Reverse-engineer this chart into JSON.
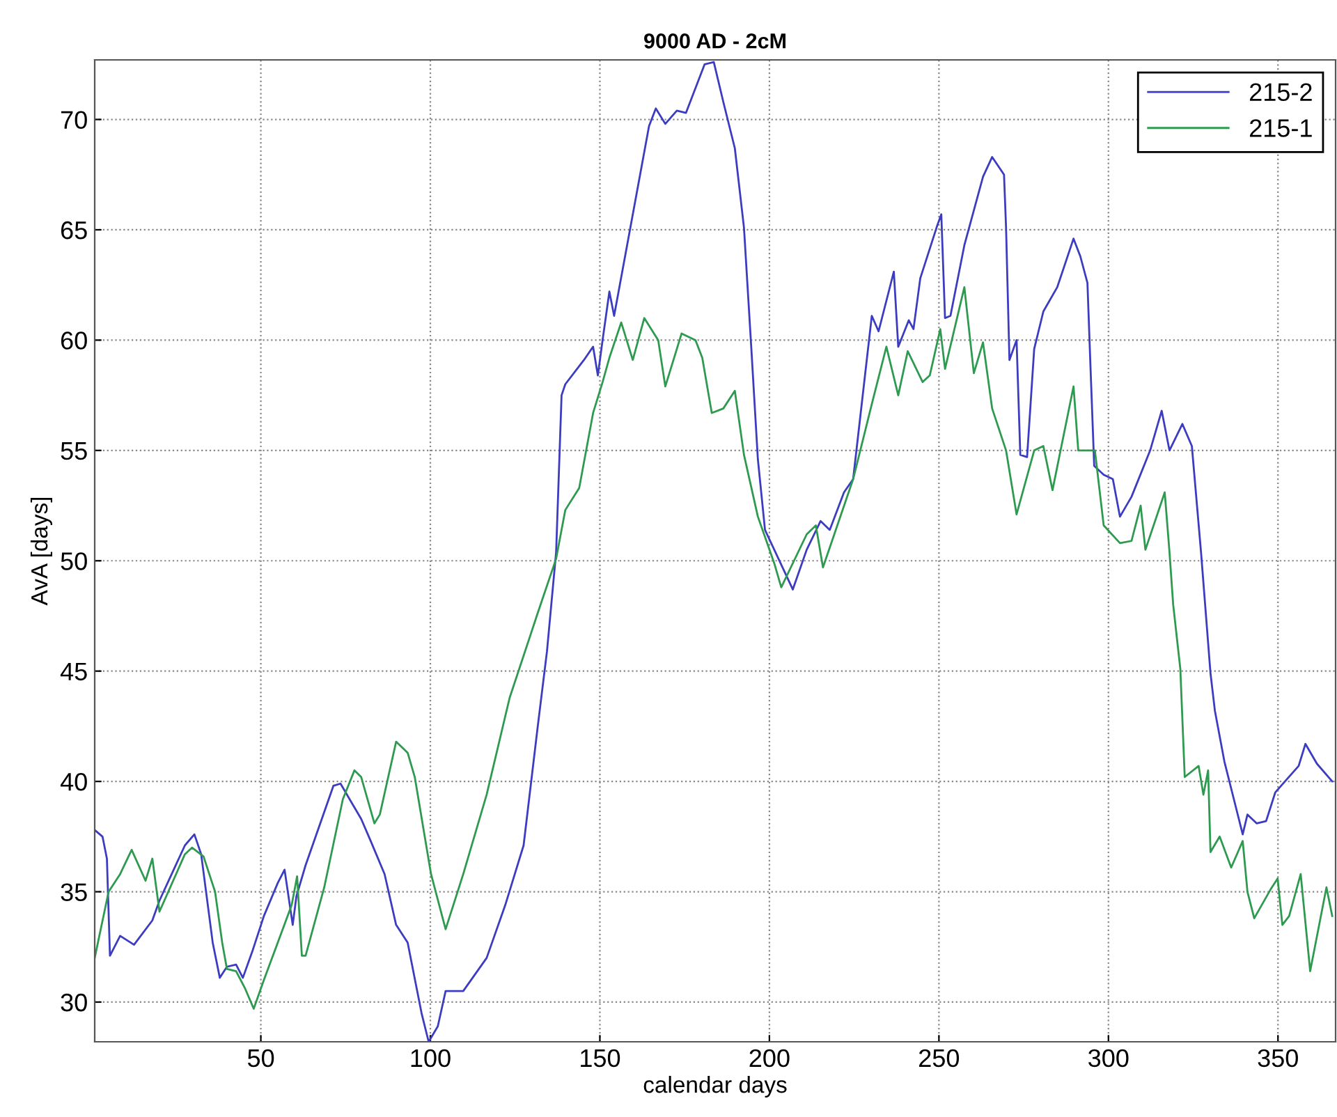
{
  "chart_data": {
    "type": "line",
    "title": "9000 AD - 2cM",
    "xlabel": "calendar days",
    "ylabel": "AvA [days]",
    "xlim": [
      1,
      367
    ],
    "ylim": [
      28.2,
      72.7
    ],
    "xticks": [
      50,
      100,
      150,
      200,
      250,
      300,
      350
    ],
    "yticks": [
      30,
      35,
      40,
      45,
      50,
      55,
      60,
      65,
      70
    ],
    "grid": true,
    "legend": "top right",
    "line_style": "solid",
    "marker": "none",
    "series": [
      {
        "name": "215-2",
        "color": "#3c3cc0",
        "x": [
          1,
          3.3,
          4.6,
          5.5,
          8.5,
          12.6,
          18,
          20.1,
          27.6,
          30.4,
          32.4,
          35.8,
          37.9,
          40,
          42.7,
          44.7,
          47.5,
          50.9,
          55,
          57,
          59.4,
          60.5,
          63.2,
          71.4,
          73.5,
          79.6,
          82.4,
          86.5,
          89.9,
          93.3,
          97.4,
          99.5,
          102.2,
          104.5,
          109.7,
          116.6,
          122.1,
          127.5,
          131.6,
          134.4,
          137.1,
          138.7,
          139.8,
          145.3,
          148,
          149.4,
          150.8,
          152.8,
          154.2,
          164.5,
          166.5,
          169.3,
          172.7,
          175.4,
          180.9,
          183.6,
          186.4,
          189.8,
          192.5,
          194.6,
          196.6,
          198.7,
          206.9,
          211,
          215.1,
          217.8,
          222,
          224.7,
          230.2,
          232.2,
          236.7,
          238,
          241.1,
          242.5,
          244.5,
          249.3,
          250.7,
          251.8,
          253.4,
          257.5,
          263,
          265.7,
          269.2,
          269.8,
          270.8,
          272.9,
          274,
          276,
          278.1,
          280.8,
          284.9,
          289.7,
          291.7,
          293.8,
          294.7,
          295.8,
          298.6,
          301.3,
          303.4,
          306.8,
          312.3,
          315.7,
          318,
          321.8,
          324.6,
          327.3,
          330.1,
          331.4,
          334.2,
          339.6,
          341,
          343.7,
          346.5,
          349.2,
          356.1,
          358.1,
          361.5,
          366
        ],
        "values": [
          37.8,
          37.5,
          36.5,
          32.1,
          33.0,
          32.6,
          33.7,
          34.6,
          37.1,
          37.6,
          36.7,
          32.7,
          31.1,
          31.6,
          31.7,
          31.1,
          32.3,
          33.9,
          35.4,
          36.0,
          33.5,
          34.8,
          36.2,
          39.8,
          39.9,
          38.3,
          37.3,
          35.8,
          33.5,
          32.7,
          29.5,
          28.2,
          28.9,
          30.5,
          30.5,
          32.0,
          34.4,
          37.1,
          42.4,
          45.9,
          50.4,
          57.5,
          58.0,
          59.1,
          59.7,
          58.4,
          60.0,
          62.2,
          61.1,
          69.7,
          70.5,
          69.8,
          70.4,
          70.3,
          72.5,
          72.6,
          70.8,
          68.7,
          65.1,
          59.8,
          54.6,
          51.4,
          48.7,
          50.5,
          51.8,
          51.4,
          53.1,
          53.7,
          61.1,
          60.4,
          63.1,
          59.7,
          60.9,
          60.5,
          62.8,
          65.1,
          65.7,
          61.0,
          61.1,
          64.3,
          67.4,
          68.3,
          67.5,
          65.1,
          59.1,
          60.0,
          54.8,
          54.7,
          59.6,
          61.3,
          62.4,
          64.6,
          63.8,
          62.6,
          58.8,
          54.3,
          53.9,
          53.7,
          52.0,
          52.9,
          55.0,
          56.8,
          55.0,
          56.2,
          55.2,
          50.4,
          44.9,
          43.2,
          40.9,
          37.6,
          38.5,
          38.1,
          38.2,
          39.5,
          40.7,
          41.7,
          40.8,
          40.0
        ]
      },
      {
        "name": "215-1",
        "color": "#2e9a50",
        "x": [
          1,
          5.1,
          8.5,
          11.9,
          16,
          18,
          20.1,
          27.6,
          29.7,
          33.1,
          36.5,
          38.6,
          40,
          42.7,
          45.4,
          47.9,
          50.9,
          55,
          59.1,
          60.7,
          62.1,
          63.2,
          68.7,
          74.2,
          77.6,
          79.6,
          83.5,
          85.1,
          89.9,
          93.3,
          95.4,
          100.2,
          104.5,
          109.7,
          116.6,
          123.4,
          131.6,
          137.1,
          139.8,
          143.9,
          148,
          150.8,
          152.8,
          156.3,
          159.7,
          163.1,
          167.2,
          169.3,
          174.1,
          178.2,
          180.2,
          183,
          186.4,
          189.8,
          192.5,
          196.6,
          201.4,
          203.5,
          211,
          213.7,
          215.8,
          224.7,
          230.2,
          234.5,
          238,
          240.8,
          245.2,
          247.3,
          250.4,
          251.8,
          257.5,
          260.3,
          263,
          265.7,
          269.8,
          272.9,
          278.1,
          280.8,
          283.5,
          289.7,
          291.1,
          296,
          298.6,
          303.4,
          306.8,
          309.5,
          310.9,
          316.6,
          318,
          319.1,
          321.2,
          322.5,
          326.6,
          328,
          329.4,
          330.1,
          332.8,
          336.2,
          339.6,
          341,
          343,
          347.8,
          349.9,
          351.3,
          353.3,
          356.7,
          359.5,
          364.3,
          366
        ],
        "values": [
          32.0,
          35.0,
          35.8,
          36.9,
          35.5,
          36.5,
          34.1,
          36.7,
          37.0,
          36.6,
          35.0,
          32.7,
          31.5,
          31.4,
          30.6,
          29.7,
          31.0,
          32.7,
          34.4,
          35.7,
          32.1,
          32.1,
          35.2,
          39.2,
          40.5,
          40.2,
          38.1,
          38.5,
          41.8,
          41.3,
          40.2,
          35.8,
          33.3,
          35.8,
          39.4,
          43.8,
          47.6,
          50.1,
          52.3,
          53.3,
          56.7,
          58.1,
          59.2,
          60.8,
          59.1,
          61.0,
          60.0,
          57.9,
          60.3,
          60.0,
          59.2,
          56.7,
          56.9,
          57.7,
          54.8,
          52.0,
          49.9,
          48.8,
          51.2,
          51.6,
          49.7,
          53.7,
          57.1,
          59.7,
          57.5,
          59.5,
          58.1,
          58.4,
          60.5,
          58.7,
          62.4,
          58.5,
          59.9,
          56.9,
          55.0,
          52.1,
          55.0,
          55.2,
          53.2,
          57.9,
          55.0,
          55.0,
          51.6,
          50.8,
          50.9,
          52.5,
          50.5,
          53.1,
          50.4,
          48.0,
          45.1,
          40.2,
          40.7,
          39.4,
          40.5,
          36.8,
          37.5,
          36.1,
          37.3,
          35.0,
          33.8,
          35.1,
          35.6,
          33.5,
          33.9,
          35.8,
          31.4,
          35.2,
          33.9
        ]
      }
    ]
  }
}
